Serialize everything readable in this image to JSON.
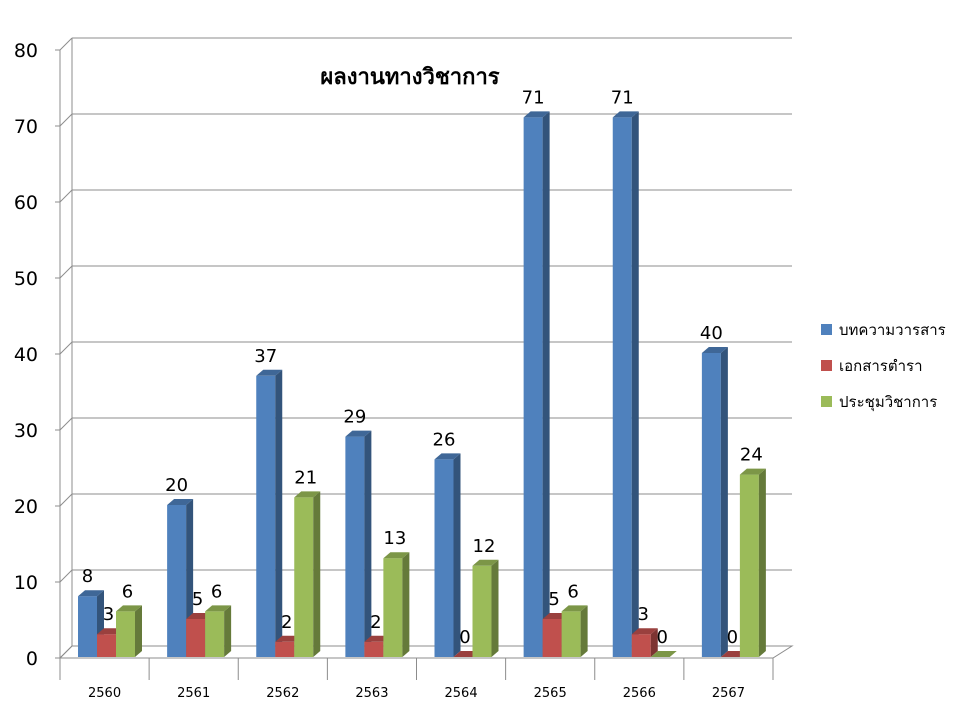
{
  "chart_data": {
    "type": "bar",
    "title": "ผลงานทางวิชาการ",
    "xlabel": "",
    "ylabel": "",
    "categories": [
      "2560",
      "2561",
      "2562",
      "2563",
      "2564",
      "2565",
      "2566",
      "2567"
    ],
    "series": [
      {
        "name": "บทความวารสาร",
        "color": "#4F81BD",
        "values": [
          8,
          20,
          37,
          29,
          26,
          71,
          71,
          40
        ]
      },
      {
        "name": "เอกสารตำรา",
        "color": "#C0504D",
        "values": [
          3,
          5,
          2,
          2,
          0,
          5,
          3,
          0
        ]
      },
      {
        "name": "ประชุมวิชาการ",
        "color": "#9BBB59",
        "values": [
          6,
          6,
          21,
          13,
          12,
          6,
          0,
          24
        ]
      }
    ],
    "ylim": [
      0,
      80
    ],
    "yticks": [
      0,
      10,
      20,
      30,
      40,
      50,
      60,
      70,
      80
    ],
    "grid": true,
    "legend": "right",
    "style": "3d-bar"
  }
}
